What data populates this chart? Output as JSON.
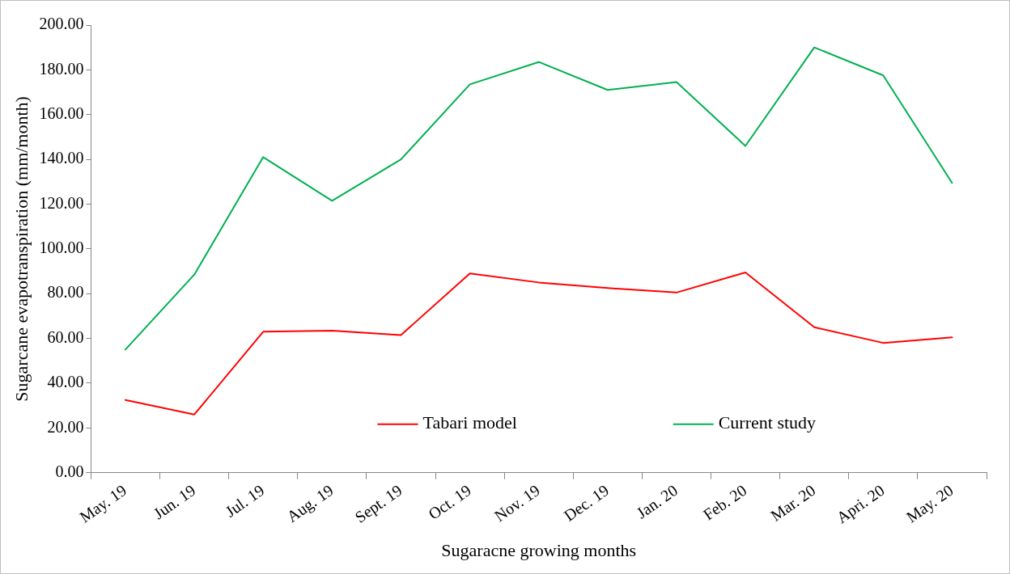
{
  "chart_data": {
    "type": "line",
    "xlabel": "Sugaracne growing months",
    "ylabel": "Sugarcane evapotranspiration (mm/month)",
    "categories": [
      "May. 19",
      "Jun. 19",
      "Jul. 19",
      "Aug. 19",
      "Sept. 19",
      "Oct. 19",
      "Nov. 19",
      "Dec. 19",
      "Jan. 20",
      "Feb. 20",
      "Mar. 20",
      "Apri. 20",
      "May. 20"
    ],
    "series": [
      {
        "name": "Tabari model",
        "color": "#ff0000",
        "values": [
          32.5,
          26,
          63,
          63.5,
          61.5,
          89,
          85,
          82.5,
          80.5,
          89.5,
          65,
          58,
          60.5
        ]
      },
      {
        "name": "Current study",
        "color": "#00b050",
        "values": [
          55,
          88.5,
          141,
          121.5,
          140,
          173.5,
          183.5,
          171,
          174.5,
          146,
          190,
          177.5,
          129.5
        ]
      }
    ],
    "ylim": [
      0,
      200
    ],
    "yticks": [
      {
        "value": 0,
        "label": "0.00"
      },
      {
        "value": 20,
        "label": "20.00"
      },
      {
        "value": 40,
        "label": "40.00"
      },
      {
        "value": 60,
        "label": "60.00"
      },
      {
        "value": 80,
        "label": "80.00"
      },
      {
        "value": 100,
        "label": "100.00"
      },
      {
        "value": 120,
        "label": "120.00"
      },
      {
        "value": 140,
        "label": "140.00"
      },
      {
        "value": 160,
        "label": "160.00"
      },
      {
        "value": 180,
        "label": "180.00"
      },
      {
        "value": 200,
        "label": "200.00"
      }
    ],
    "grid": false,
    "legend": "bottom",
    "marker": "none",
    "line_style": "solid"
  }
}
